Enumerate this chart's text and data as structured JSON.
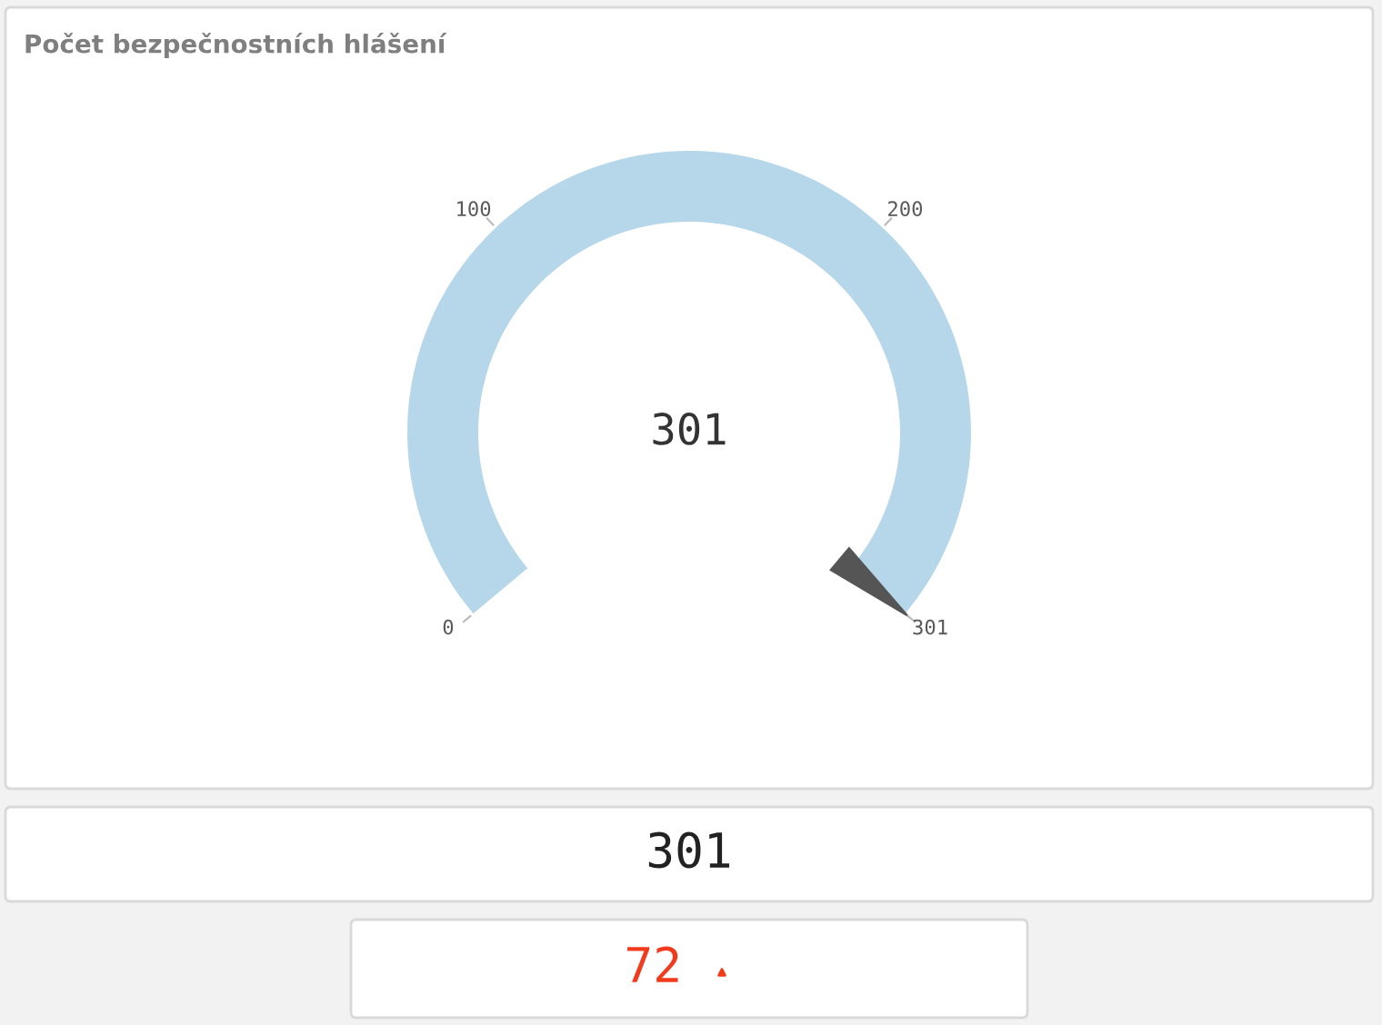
{
  "chart_data": {
    "type": "other",
    "title": "Počet bezpečnostních hlášení",
    "values": [
      301
    ],
    "color": "#b6d7e9",
    "data_labels": true,
    "annotations": [
      "0",
      "100",
      "200",
      "301",
      "301",
      "72"
    ]
  }
}
